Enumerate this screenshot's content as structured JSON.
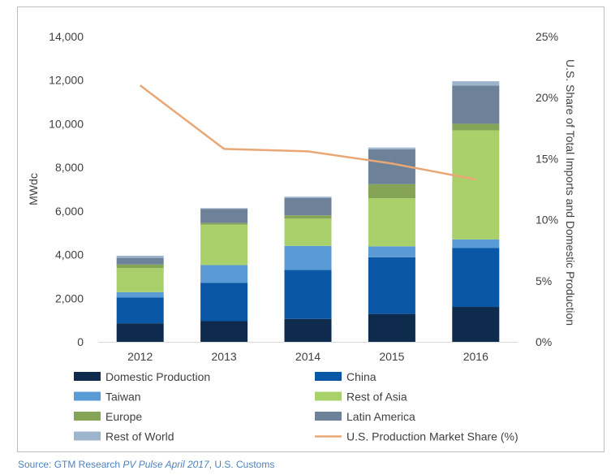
{
  "chart_data": {
    "type": "bar",
    "stacked": true,
    "categories": [
      "2012",
      "2013",
      "2014",
      "2015",
      "2016"
    ],
    "ylabel": "MWdc",
    "y2label": "U.S. Share of Total Imports and Domestic Production",
    "ylim": [
      0,
      14000
    ],
    "y2lim": [
      0,
      25
    ],
    "yticks": [
      "0",
      "2,000",
      "4,000",
      "6,000",
      "8,000",
      "10,000",
      "12,000",
      "14,000"
    ],
    "y2ticks": [
      "0%",
      "5%",
      "10%",
      "15%",
      "20%",
      "25%"
    ],
    "grid": false,
    "legend_position": "bottom",
    "series": [
      {
        "name": "Domestic Production",
        "color": "#0e2b4e",
        "values": [
          850,
          950,
          1050,
          1280,
          1600
        ]
      },
      {
        "name": "China",
        "color": "#0a57a6",
        "values": [
          1180,
          1750,
          2250,
          2600,
          2700
        ]
      },
      {
        "name": "Taiwan",
        "color": "#5b9bd5",
        "values": [
          250,
          820,
          1100,
          500,
          400
        ]
      },
      {
        "name": "Rest of Asia",
        "color": "#a9d06a",
        "values": [
          1100,
          1850,
          1250,
          2200,
          5000
        ]
      },
      {
        "name": "Europe",
        "color": "#86a455",
        "values": [
          170,
          80,
          150,
          650,
          300
        ]
      },
      {
        "name": "Latin America",
        "color": "#6d8299",
        "values": [
          300,
          650,
          800,
          1600,
          1750
        ]
      },
      {
        "name": "Rest of World",
        "color": "#9db5cc",
        "values": [
          100,
          30,
          60,
          80,
          200
        ]
      }
    ],
    "line_series": {
      "name": "U.S. Production Market Share (%)",
      "color": "#eaa776",
      "axis": "right",
      "values": [
        21.0,
        15.8,
        15.6,
        14.6,
        13.3
      ]
    }
  },
  "source": {
    "prefix": "Source: GTM Research ",
    "italic": "PV Pulse April 2017",
    "suffix": ", U.S. Customs"
  }
}
